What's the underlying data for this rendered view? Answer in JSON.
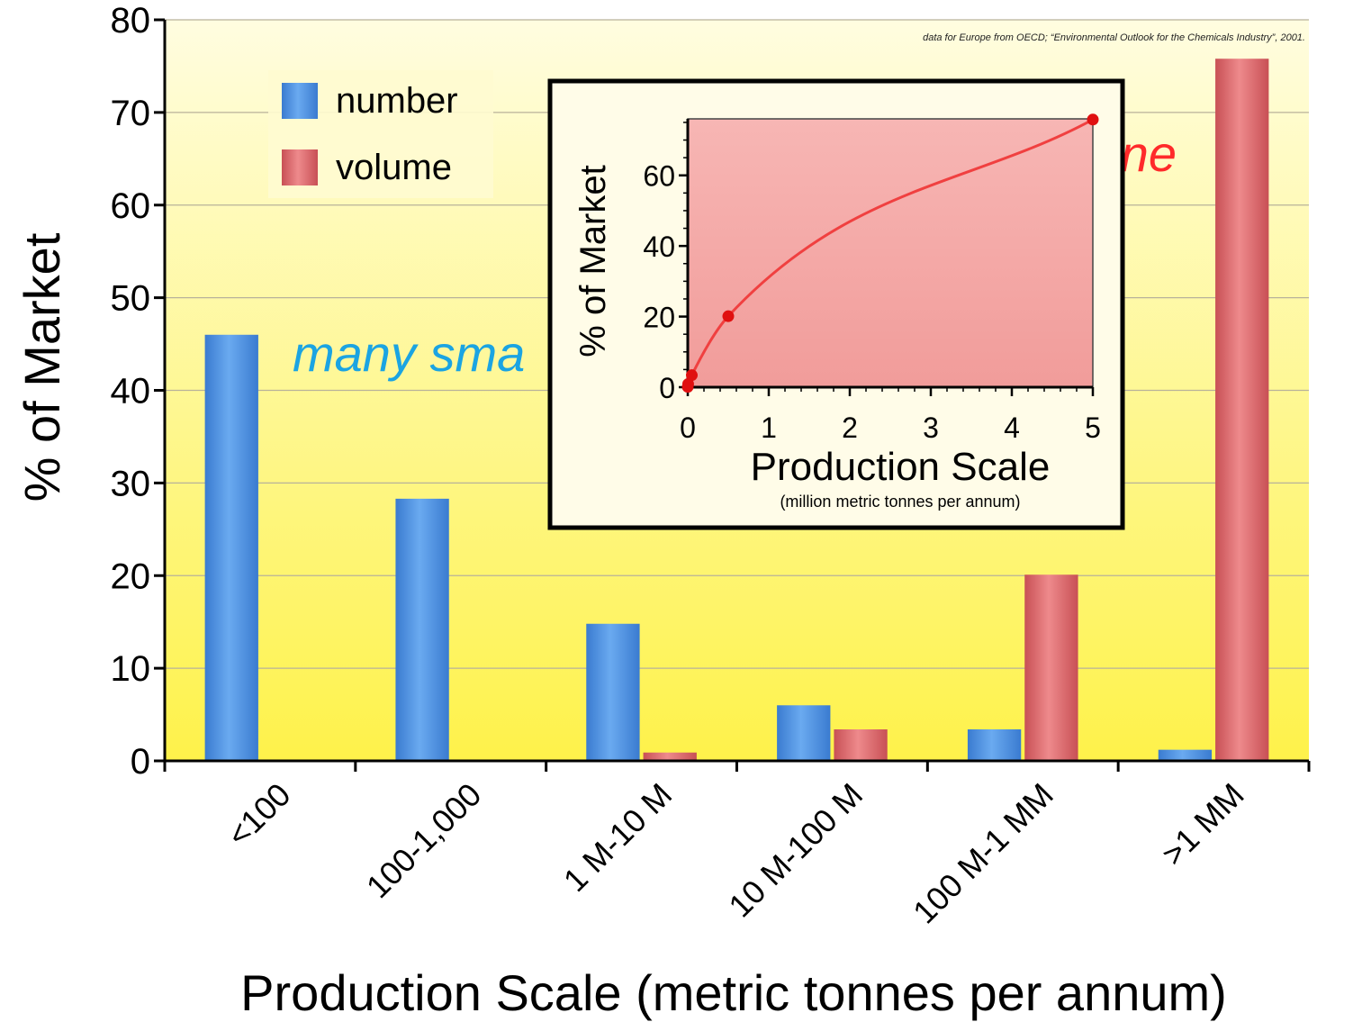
{
  "chart_data": [
    {
      "type": "bar",
      "ylabel": "% of Market",
      "xlabel": "Production Scale (metric tonnes per annum)",
      "ylim": [
        0,
        80
      ],
      "yticks": [
        0,
        10,
        20,
        30,
        40,
        50,
        60,
        70,
        80
      ],
      "categories": [
        "<100",
        "100-1,000",
        "1 M-10 M",
        "10 M-100 M",
        "100 M-1 MM",
        ">1 MM"
      ],
      "series": [
        {
          "name": "number",
          "color": "#4a90e0",
          "values": [
            46,
            28.3,
            14.8,
            6,
            3.4,
            1.2
          ]
        },
        {
          "name": "volume",
          "color": "#dc6468",
          "values": [
            0.1,
            0.1,
            0.9,
            3.4,
            20.1,
            75.8
          ]
        }
      ],
      "legend": "top-left",
      "grid": true,
      "background_colors": [
        "#fffde0",
        "#fef24a"
      ],
      "source_note": "data for Europe from OECD; “Environmental Outlook for the Chemicals Industry”, 2001.",
      "annotations": [
        {
          "text": "many sma",
          "color": "#1ba4e2"
        },
        {
          "text": "ne",
          "color": "#ff2a2a"
        }
      ]
    },
    {
      "type": "line",
      "ylabel": "% of Market",
      "xlabel": "Production Scale",
      "xlabel_sub": "(million metric tonnes per annum)",
      "xlim": [
        0,
        5
      ],
      "ylim": [
        0,
        76
      ],
      "xticks": [
        0,
        1,
        2,
        3,
        4,
        5
      ],
      "yticks": [
        0,
        20,
        40,
        60
      ],
      "points": [
        {
          "x": 0,
          "y": 0.1
        },
        {
          "x": 0.005,
          "y": 0.9
        },
        {
          "x": 0.05,
          "y": 3.4
        },
        {
          "x": 0.5,
          "y": 20.1
        },
        {
          "x": 5,
          "y": 75.8
        }
      ],
      "line_color": "#f04040",
      "grid": false
    }
  ]
}
